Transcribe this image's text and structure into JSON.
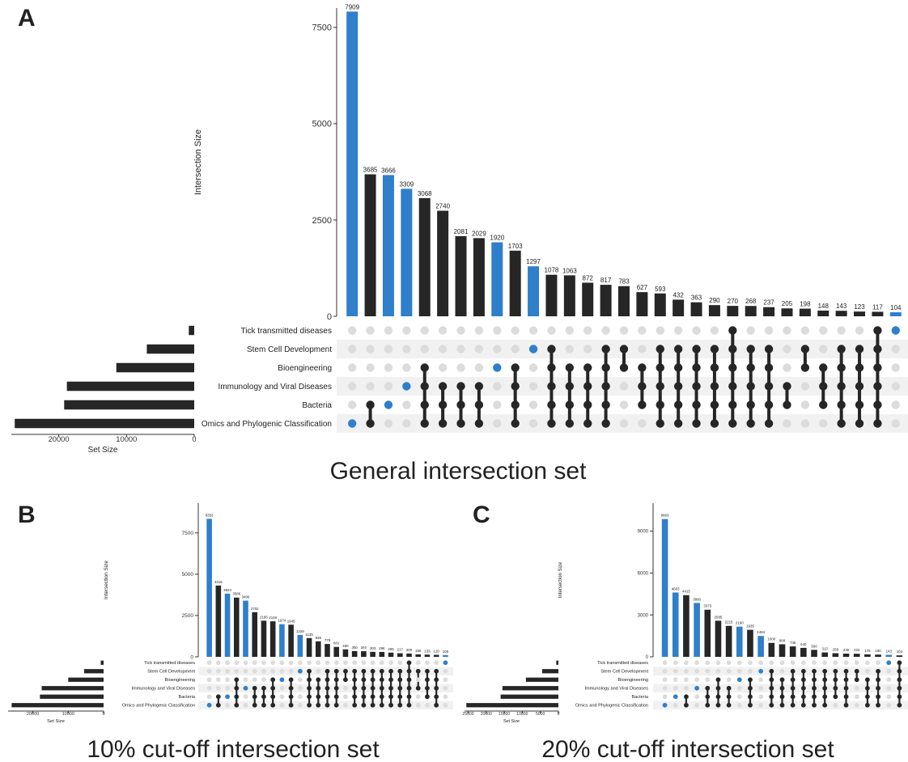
{
  "colors": {
    "bar": "#262626",
    "highlight": "#2f7fcb",
    "dot_off": "#dcdcdc",
    "stripe": "#f1f1f1",
    "axis": "#333333"
  },
  "panels": [
    {
      "letter": "A",
      "caption": "General intersection set"
    },
    {
      "letter": "B",
      "caption": "10% cut-off intersection set"
    },
    {
      "letter": "C",
      "caption": "20% cut-off intersection set"
    }
  ],
  "chart_data": [
    {
      "type": "bar",
      "panel": "A",
      "title": "General intersection set",
      "ylabel": "Intersection Size",
      "set_size_label": "Set Size",
      "ylim": [
        0,
        8000
      ],
      "yticks": [
        0,
        2500,
        5000,
        7500
      ],
      "set_ticks": [
        20000,
        10000,
        0
      ],
      "set_max": 27000,
      "sets": [
        {
          "name": "Tick transmitted diseases",
          "size": 800
        },
        {
          "name": "Stem Cell Development",
          "size": 7000
        },
        {
          "name": "Bioengineering",
          "size": 11500
        },
        {
          "name": "Immunology and Viral Diseases",
          "size": 18800
        },
        {
          "name": "Bacteria",
          "size": 19200
        },
        {
          "name": "Omics and Phylogenic Classification",
          "size": 26500
        }
      ],
      "intersections": [
        {
          "value": 7909,
          "members": [
            5
          ],
          "highlight": true
        },
        {
          "value": 3685,
          "members": [
            4,
            5
          ],
          "highlight": false
        },
        {
          "value": 3666,
          "members": [
            4
          ],
          "highlight": true
        },
        {
          "value": 3309,
          "members": [
            3
          ],
          "highlight": true
        },
        {
          "value": 3068,
          "members": [
            2,
            3,
            4,
            5
          ],
          "highlight": false
        },
        {
          "value": 2740,
          "members": [
            3,
            4,
            5
          ],
          "highlight": false
        },
        {
          "value": 2081,
          "members": [
            3,
            4,
            5
          ],
          "highlight": false
        },
        {
          "value": 2029,
          "members": [
            3,
            4,
            5
          ],
          "highlight": false
        },
        {
          "value": 1920,
          "members": [
            2
          ],
          "highlight": true
        },
        {
          "value": 1703,
          "members": [
            2,
            3,
            4,
            5
          ],
          "highlight": false
        },
        {
          "value": 1297,
          "members": [
            1
          ],
          "highlight": true
        },
        {
          "value": 1078,
          "members": [
            1,
            2,
            3,
            4,
            5
          ],
          "highlight": false
        },
        {
          "value": 1063,
          "members": [
            2,
            3,
            4,
            5
          ],
          "highlight": false
        },
        {
          "value": 872,
          "members": [
            2,
            3,
            4,
            5
          ],
          "highlight": false
        },
        {
          "value": 817,
          "members": [
            1,
            2,
            3,
            4,
            5
          ],
          "highlight": false
        },
        {
          "value": 783,
          "members": [
            1,
            2
          ],
          "highlight": false
        },
        {
          "value": 627,
          "members": [
            2,
            3,
            4
          ],
          "highlight": false
        },
        {
          "value": 593,
          "members": [
            1,
            2,
            3,
            4,
            5
          ],
          "highlight": false
        },
        {
          "value": 432,
          "members": [
            1,
            2,
            3,
            4,
            5
          ],
          "highlight": false
        },
        {
          "value": 363,
          "members": [
            1,
            2,
            3,
            4,
            5
          ],
          "highlight": false
        },
        {
          "value": 290,
          "members": [
            1,
            2,
            3,
            4,
            5
          ],
          "highlight": false
        },
        {
          "value": 270,
          "members": [
            0,
            1,
            2,
            3,
            4,
            5
          ],
          "highlight": false
        },
        {
          "value": 268,
          "members": [
            1,
            2,
            3,
            4,
            5
          ],
          "highlight": false
        },
        {
          "value": 237,
          "members": [
            1,
            2,
            3,
            4,
            5
          ],
          "highlight": false
        },
        {
          "value": 205,
          "members": [
            3,
            4
          ],
          "highlight": false
        },
        {
          "value": 198,
          "members": [
            1,
            2
          ],
          "highlight": false
        },
        {
          "value": 148,
          "members": [
            2,
            3,
            4
          ],
          "highlight": false
        },
        {
          "value": 143,
          "members": [
            1,
            2,
            3,
            4,
            5
          ],
          "highlight": false
        },
        {
          "value": 123,
          "members": [
            1,
            2,
            3,
            4,
            5
          ],
          "highlight": false
        },
        {
          "value": 117,
          "members": [
            0,
            1,
            2,
            3,
            4,
            5
          ],
          "highlight": false
        },
        {
          "value": 104,
          "members": [
            0
          ],
          "highlight": true
        }
      ]
    },
    {
      "type": "bar",
      "panel": "B",
      "title": "10% cut-off intersection set",
      "ylabel": "Intersection Size",
      "set_size_label": "Set Size",
      "ylim": [
        0,
        9300
      ],
      "yticks": [
        0,
        2500,
        5000,
        7500
      ],
      "set_ticks": [
        20000,
        10000,
        0
      ],
      "set_max": 27000,
      "sets": [
        {
          "name": "Tick transmitted diseases",
          "size": 800
        },
        {
          "name": "Stem Cell Development",
          "size": 5500
        },
        {
          "name": "Bioengineering",
          "size": 10000
        },
        {
          "name": "Immunology and Viral Diseases",
          "size": 17500
        },
        {
          "name": "Bacteria",
          "size": 18000
        },
        {
          "name": "Omics and Phylogenic Classification",
          "size": 26000
        }
      ],
      "intersections": [
        {
          "value": 8353,
          "members": [
            5
          ],
          "highlight": true
        },
        {
          "value": 4315,
          "members": [
            4,
            5
          ],
          "highlight": false
        },
        {
          "value": 3824,
          "members": [
            4
          ],
          "highlight": true
        },
        {
          "value": 3586,
          "members": [
            2,
            3,
            4,
            5
          ],
          "highlight": false
        },
        {
          "value": 3400,
          "members": [
            3
          ],
          "highlight": true
        },
        {
          "value": 2702,
          "members": [
            3,
            4,
            5
          ],
          "highlight": false
        },
        {
          "value": 2186,
          "members": [
            3,
            4,
            5
          ],
          "highlight": false
        },
        {
          "value": 2149,
          "members": [
            2,
            3,
            4,
            5
          ],
          "highlight": false
        },
        {
          "value": 1974,
          "members": [
            2
          ],
          "highlight": true
        },
        {
          "value": 1945,
          "members": [
            2,
            3,
            4,
            5
          ],
          "highlight": false
        },
        {
          "value": 1329,
          "members": [
            1
          ],
          "highlight": true
        },
        {
          "value": 1135,
          "members": [
            1,
            2,
            3,
            4,
            5
          ],
          "highlight": false
        },
        {
          "value": 938,
          "members": [
            2,
            3,
            4,
            5
          ],
          "highlight": false
        },
        {
          "value": 779,
          "members": [
            1,
            2,
            3,
            4,
            5
          ],
          "highlight": false
        },
        {
          "value": 601,
          "members": [
            1,
            2,
            3,
            4,
            5
          ],
          "highlight": false
        },
        {
          "value": 450,
          "members": [
            1,
            2
          ],
          "highlight": false
        },
        {
          "value": 350,
          "members": [
            1,
            2,
            3,
            4,
            5
          ],
          "highlight": false
        },
        {
          "value": 340,
          "members": [
            1,
            2,
            3,
            4,
            5
          ],
          "highlight": false
        },
        {
          "value": 303,
          "members": [
            1,
            2,
            3,
            4,
            5
          ],
          "highlight": false
        },
        {
          "value": 296,
          "members": [
            1,
            2,
            3,
            4,
            5
          ],
          "highlight": false
        },
        {
          "value": 255,
          "members": [
            1,
            2,
            3,
            4,
            5
          ],
          "highlight": false
        },
        {
          "value": 217,
          "members": [
            1,
            2,
            3,
            4,
            5
          ],
          "highlight": false
        },
        {
          "value": 200,
          "members": [
            0,
            1,
            2,
            3,
            4,
            5
          ],
          "highlight": false
        },
        {
          "value": 150,
          "members": [
            1,
            3
          ],
          "highlight": false
        },
        {
          "value": 133,
          "members": [
            1,
            2,
            3,
            4
          ],
          "highlight": false
        },
        {
          "value": 120,
          "members": [
            1,
            2,
            3,
            4,
            5
          ],
          "highlight": false
        },
        {
          "value": 106,
          "members": [
            0
          ],
          "highlight": true
        }
      ]
    },
    {
      "type": "bar",
      "panel": "C",
      "title": "20% cut-off intersection set",
      "ylabel": "Intersection Size",
      "set_size_label": "Set Size",
      "ylim": [
        0,
        11000
      ],
      "yticks": [
        0,
        3000,
        6000,
        9000
      ],
      "set_ticks": [
        25000,
        20000,
        15000,
        10000,
        5000,
        0
      ],
      "set_max": 26000,
      "sets": [
        {
          "name": "Tick transmitted diseases",
          "size": 600
        },
        {
          "name": "Stem Cell Development",
          "size": 4500
        },
        {
          "name": "Bioengineering",
          "size": 9000
        },
        {
          "name": "Immunology and Viral Diseases",
          "size": 15500
        },
        {
          "name": "Bacteria",
          "size": 16000
        },
        {
          "name": "Omics and Phylogenic Classification",
          "size": 25500
        }
      ],
      "intersections": [
        {
          "value": 9863,
          "members": [
            5
          ],
          "highlight": true
        },
        {
          "value": 4603,
          "members": [
            4
          ],
          "highlight": true
        },
        {
          "value": 4415,
          "members": [
            4,
            5
          ],
          "highlight": false
        },
        {
          "value": 3860,
          "members": [
            3
          ],
          "highlight": true
        },
        {
          "value": 3373,
          "members": [
            3,
            4,
            5
          ],
          "highlight": false
        },
        {
          "value": 2585,
          "members": [
            2,
            3,
            4,
            5
          ],
          "highlight": false
        },
        {
          "value": 2215,
          "members": [
            3,
            4,
            5
          ],
          "highlight": false
        },
        {
          "value": 2160,
          "members": [
            2
          ],
          "highlight": true
        },
        {
          "value": 1935,
          "members": [
            2,
            3,
            4,
            5
          ],
          "highlight": false
        },
        {
          "value": 1494,
          "members": [
            1
          ],
          "highlight": true
        },
        {
          "value": 1000,
          "members": [
            1,
            2,
            3,
            4,
            5
          ],
          "highlight": false
        },
        {
          "value": 900,
          "members": [
            2,
            3,
            4,
            5
          ],
          "highlight": false
        },
        {
          "value": 745,
          "members": [
            1,
            2,
            3,
            4,
            5
          ],
          "highlight": false
        },
        {
          "value": 640,
          "members": [
            1,
            2,
            3,
            4,
            5
          ],
          "highlight": false
        },
        {
          "value": 500,
          "members": [
            1,
            2,
            3,
            4,
            5
          ],
          "highlight": false
        },
        {
          "value": 313,
          "members": [
            1,
            2,
            3,
            4,
            5
          ],
          "highlight": false
        },
        {
          "value": 258,
          "members": [
            1,
            2,
            3,
            4
          ],
          "highlight": false
        },
        {
          "value": 230,
          "members": [
            1,
            2,
            3,
            4,
            5
          ],
          "highlight": false
        },
        {
          "value": 222,
          "members": [
            1,
            2
          ],
          "highlight": false
        },
        {
          "value": 175,
          "members": [
            2,
            3,
            4,
            5
          ],
          "highlight": false
        },
        {
          "value": 160,
          "members": [
            1,
            2,
            3,
            4,
            5
          ],
          "highlight": false
        },
        {
          "value": 143,
          "members": [
            0
          ],
          "highlight": true
        },
        {
          "value": 104,
          "members": [
            0,
            1,
            2,
            3,
            4,
            5
          ],
          "highlight": false
        }
      ]
    }
  ]
}
